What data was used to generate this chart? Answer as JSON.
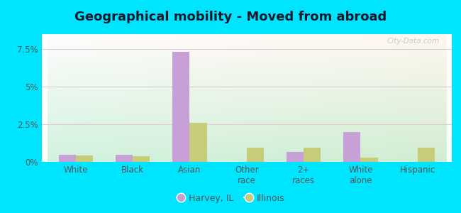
{
  "title": "Geographical mobility - Moved from abroad",
  "categories": [
    "White",
    "Black",
    "Asian",
    "Other\nrace",
    "2+\nraces",
    "White\nalone",
    "Hispanic"
  ],
  "harvey_values": [
    0.45,
    0.45,
    7.3,
    0.0,
    0.65,
    2.0,
    0.0
  ],
  "illinois_values": [
    0.42,
    0.38,
    2.6,
    0.95,
    0.95,
    0.3,
    0.95
  ],
  "harvey_color": "#c8a0d8",
  "illinois_color": "#c8cc7a",
  "bar_width": 0.3,
  "ylim": [
    0,
    8.5
  ],
  "yticks": [
    0,
    2.5,
    5.0,
    7.5
  ],
  "ytick_labels": [
    "0%",
    "2.5%",
    "5%",
    "7.5%"
  ],
  "outer_background": "#00e5ff",
  "title_fontsize": 13,
  "axis_label_fontsize": 8.5,
  "legend_label_harvey": "Harvey, IL",
  "legend_label_illinois": "Illinois",
  "grid_color": "#e0c8d8",
  "tick_color": "#555555"
}
